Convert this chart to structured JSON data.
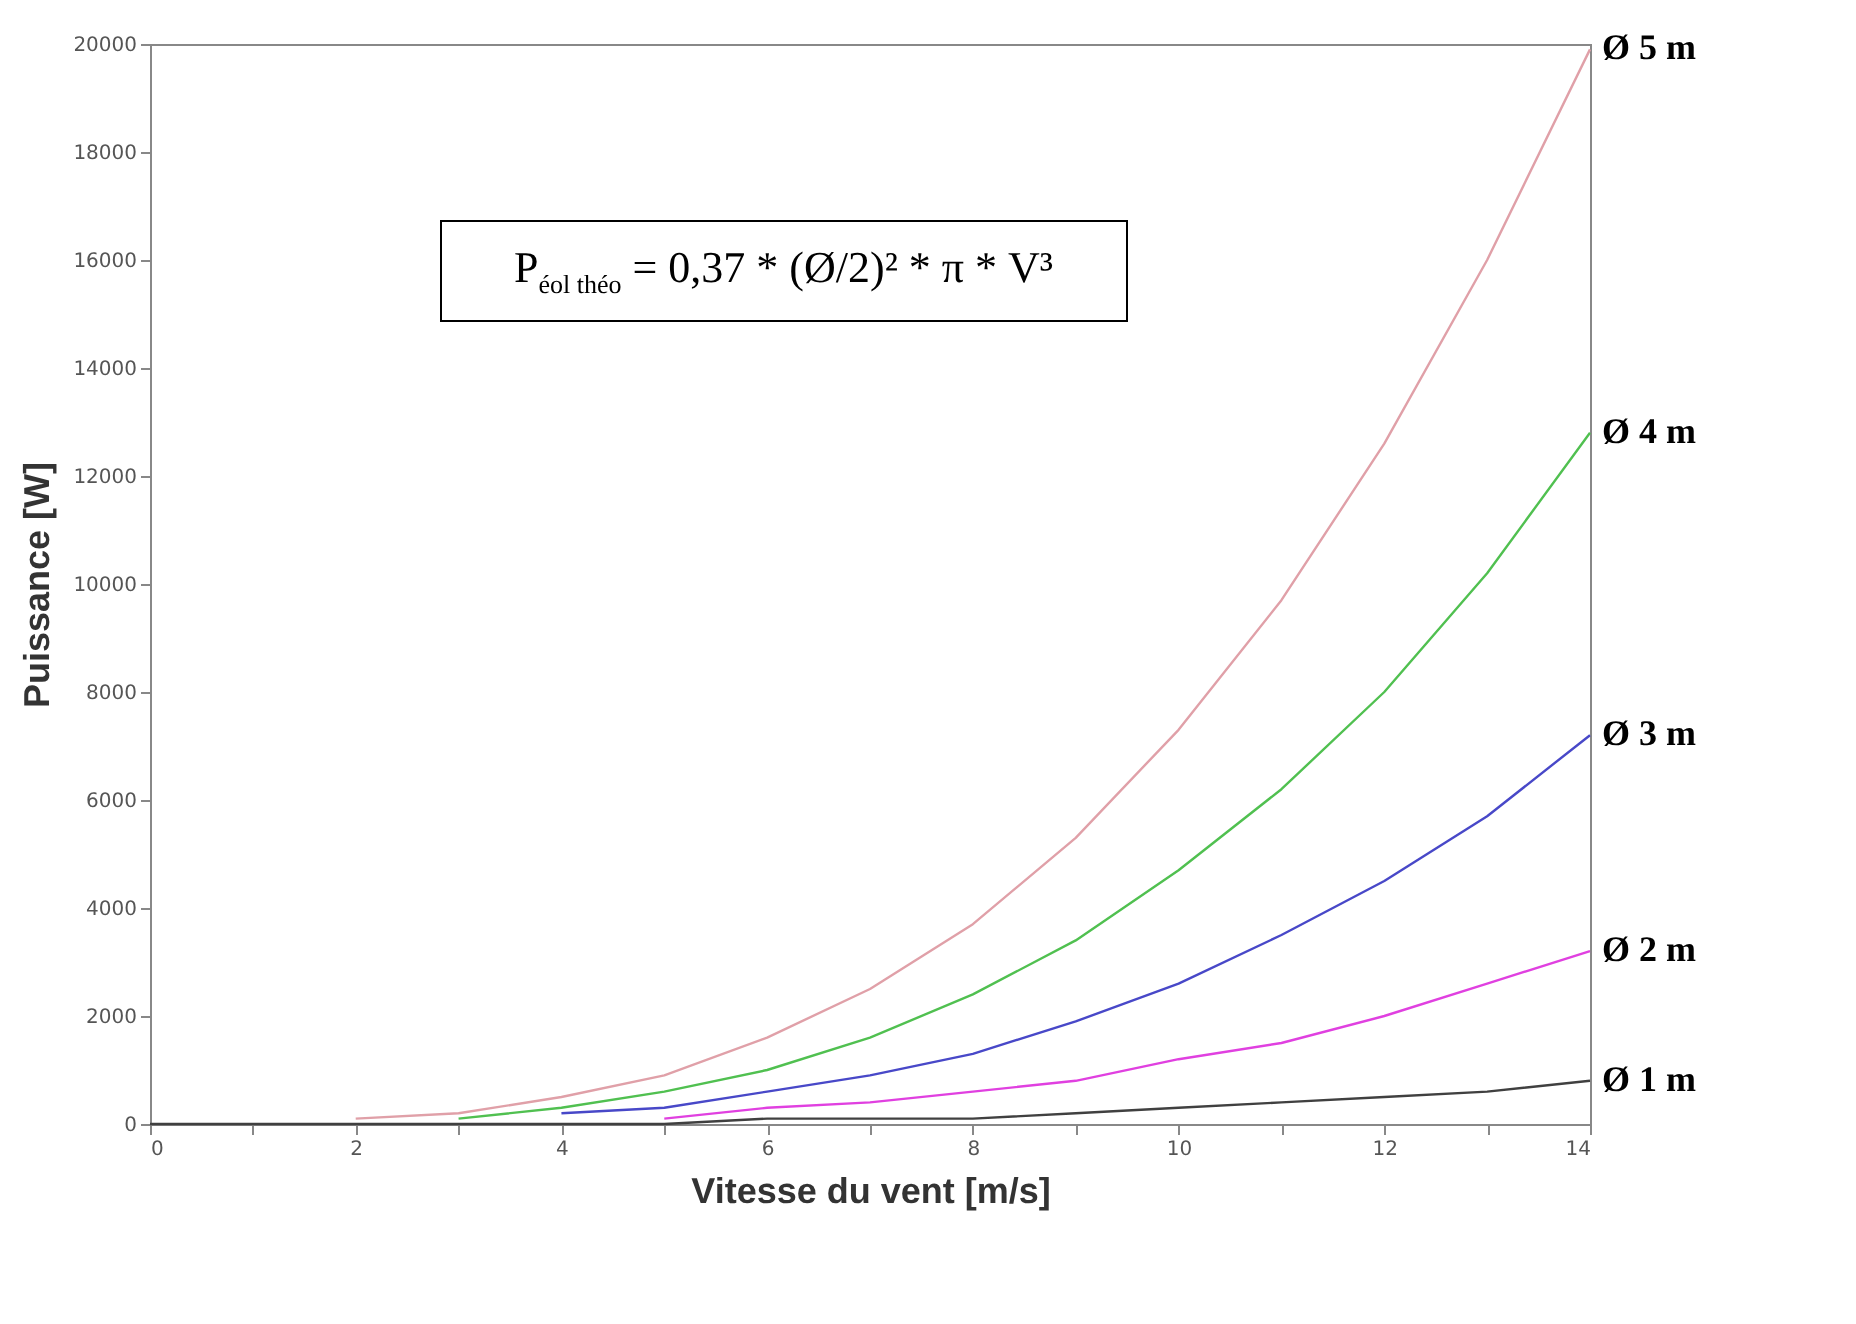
{
  "chart_data": {
    "type": "line",
    "xlabel": "Vitesse du vent [m/s]",
    "ylabel": "Puissance [W]",
    "annotations": [
      "P$_{éol théo}$ = 0,37 * (Ø/2)² * π * V³"
    ],
    "x": [
      0,
      1,
      2,
      3,
      4,
      5,
      6,
      7,
      8,
      9,
      10,
      11,
      12,
      13,
      14
    ],
    "series": [
      {
        "name": "Ø 5 m",
        "color": "#e0a0a8",
        "values": [
          null,
          null,
          100,
          200,
          500,
          900,
          1600,
          2500,
          3700,
          5300,
          7300,
          9700,
          12600,
          16000,
          19900
        ]
      },
      {
        "name": "Ø 4 m",
        "color": "#50c050",
        "values": [
          null,
          null,
          null,
          100,
          300,
          600,
          1000,
          1600,
          2400,
          3400,
          4700,
          6200,
          8000,
          10200,
          12800
        ]
      },
      {
        "name": "Ø 3 m",
        "color": "#4848c8",
        "values": [
          null,
          null,
          null,
          null,
          200,
          300,
          600,
          900,
          1300,
          1900,
          2600,
          3500,
          4500,
          5700,
          7200
        ]
      },
      {
        "name": "Ø 2 m",
        "color": "#e040e0",
        "values": [
          null,
          null,
          null,
          null,
          null,
          100,
          300,
          400,
          600,
          800,
          1200,
          1500,
          2000,
          2600,
          3200
        ]
      },
      {
        "name": "Ø 1 m",
        "color": "#404040",
        "values": [
          0,
          0,
          0,
          0,
          0,
          0,
          100,
          100,
          100,
          200,
          300,
          400,
          500,
          600,
          800
        ]
      }
    ],
    "xlim": [
      0,
      14
    ],
    "xticks": [
      0,
      {
        "value": 1,
        "label": null
      },
      2,
      {
        "value": 3,
        "label": null
      },
      4,
      {
        "value": 5,
        "label": null
      },
      6,
      {
        "value": 7,
        "label": null
      },
      8,
      {
        "value": 9,
        "label": null
      },
      10,
      {
        "value": 11,
        "label": null
      },
      12,
      {
        "value": 13,
        "label": null
      },
      14
    ],
    "ylim": [
      0,
      20000
    ],
    "yticks": [
      0,
      2000,
      4000,
      6000,
      8000,
      10000,
      12000,
      14000,
      16000,
      18000,
      20000
    ],
    "grid": false,
    "legend": false,
    "marker": "none",
    "line_style": "solid"
  }
}
